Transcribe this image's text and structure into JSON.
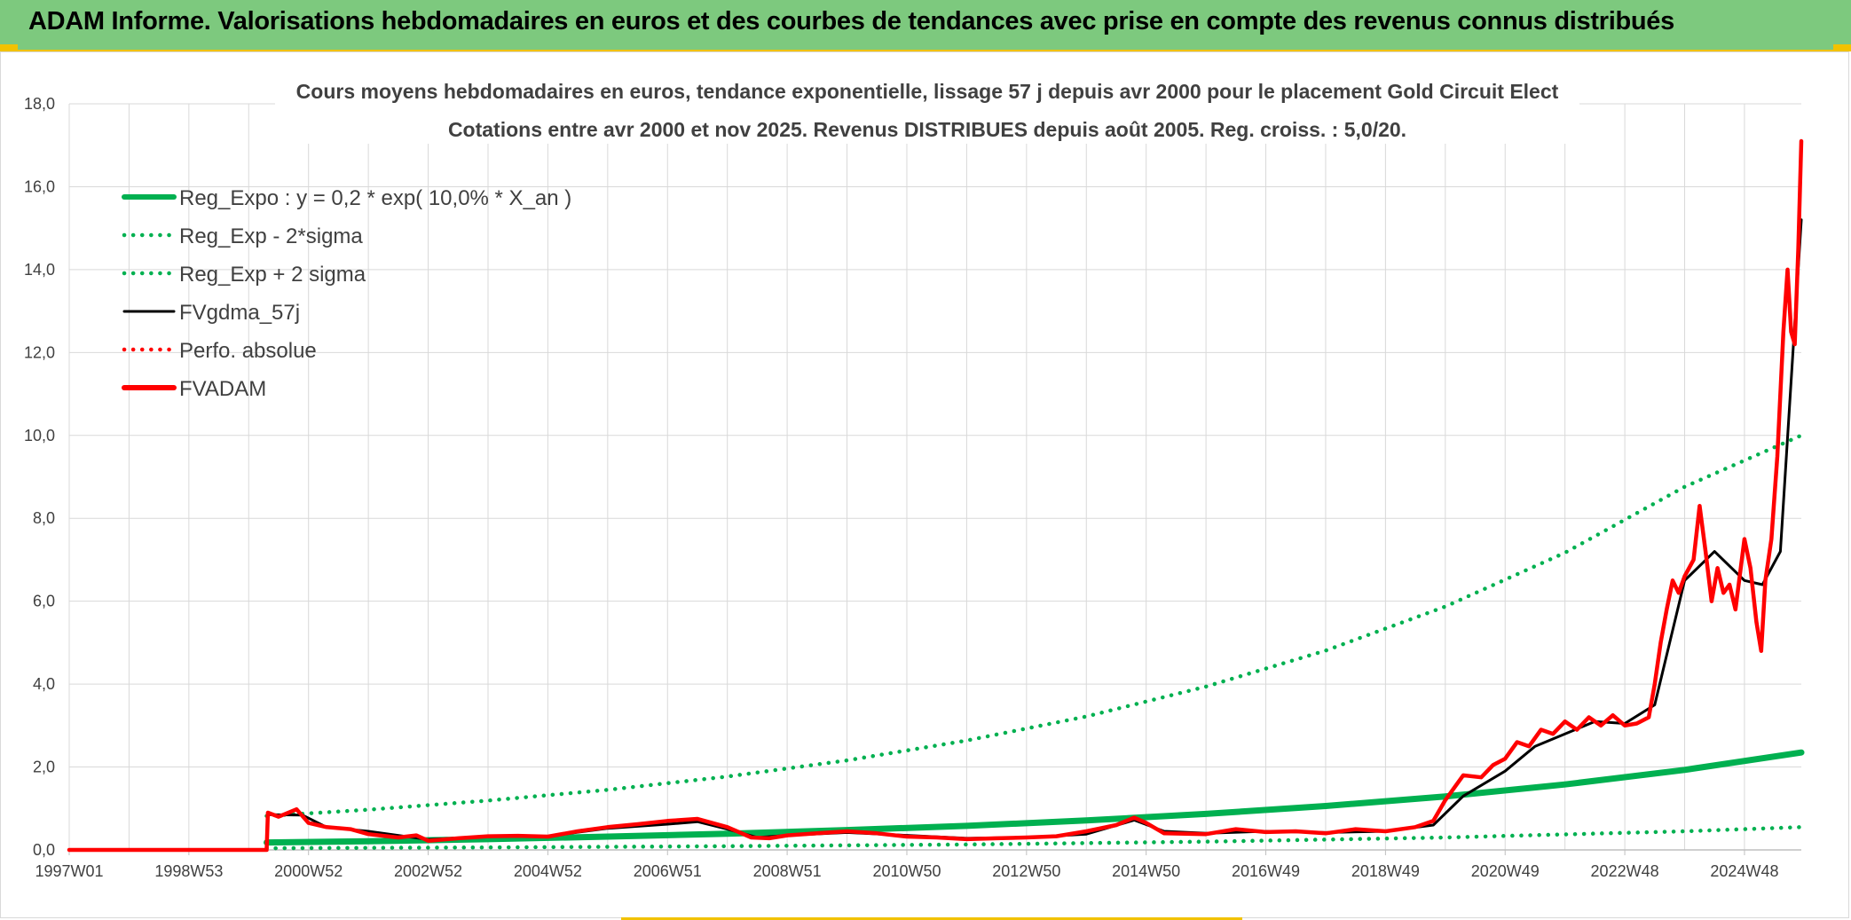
{
  "banner": {
    "title": "ADAM Informe. Valorisations hebdomadaires en euros et des courbes de tendances avec prise en compte des revenus connus distribués"
  },
  "chart_data": {
    "type": "line",
    "title": "Cours moyens hebdomadaires en euros, tendance exponentielle, lissage 57 j depuis avr 2000 pour le placement Gold Circuit Elect",
    "subtitle": "Cotations entre avr 2000 et nov 2025. Revenus DISTRIBUES depuis août 2005. Reg. croiss. : 5,0/20.",
    "xlabel": "",
    "ylabel": "",
    "ylim": [
      0,
      18
    ],
    "yticks": [
      "0,0",
      "2,0",
      "4,0",
      "6,0",
      "8,0",
      "10,0",
      "12,0",
      "14,0",
      "16,0",
      "18,0"
    ],
    "xlim": [
      1997.0,
      2025.95
    ],
    "xtick_labels": [
      {
        "x": 1997.0,
        "label": "1997W01"
      },
      {
        "x": 1999.0,
        "label": "1998W53"
      },
      {
        "x": 2001.0,
        "label": "2000W52"
      },
      {
        "x": 2003.0,
        "label": "2002W52"
      },
      {
        "x": 2005.0,
        "label": "2004W52"
      },
      {
        "x": 2007.0,
        "label": "2006W51"
      },
      {
        "x": 2009.0,
        "label": "2008W51"
      },
      {
        "x": 2011.0,
        "label": "2010W50"
      },
      {
        "x": 2013.0,
        "label": "2012W50"
      },
      {
        "x": 2015.0,
        "label": "2014W50"
      },
      {
        "x": 2017.0,
        "label": "2016W49"
      },
      {
        "x": 2019.0,
        "label": "2018W49"
      },
      {
        "x": 2021.0,
        "label": "2020W49"
      },
      {
        "x": 2023.0,
        "label": "2022W48"
      },
      {
        "x": 2025.0,
        "label": "2024W48"
      }
    ],
    "legend_position": "top-left",
    "series": [
      {
        "name": "Reg_Expo : y = 0,2 * exp( 10,0% *  X_an )",
        "color": "#00b050",
        "style": "solid-thick",
        "points": [
          [
            2000.3,
            0.18
          ],
          [
            2002,
            0.21
          ],
          [
            2004,
            0.26
          ],
          [
            2006,
            0.32
          ],
          [
            2008,
            0.39
          ],
          [
            2010,
            0.48
          ],
          [
            2012,
            0.58
          ],
          [
            2014,
            0.71
          ],
          [
            2016,
            0.87
          ],
          [
            2018,
            1.06
          ],
          [
            2020,
            1.29
          ],
          [
            2022,
            1.58
          ],
          [
            2024,
            1.93
          ],
          [
            2025.95,
            2.35
          ]
        ]
      },
      {
        "name": "Reg_Exp - 2*sigma",
        "color": "#00b050",
        "style": "dotted",
        "points": [
          [
            2000.3,
            0.04
          ],
          [
            2004,
            0.06
          ],
          [
            2008,
            0.09
          ],
          [
            2012,
            0.13
          ],
          [
            2016,
            0.2
          ],
          [
            2020,
            0.3
          ],
          [
            2024,
            0.45
          ],
          [
            2025.95,
            0.55
          ]
        ]
      },
      {
        "name": "Reg_Exp + 2 sigma",
        "color": "#00b050",
        "style": "dotted",
        "points": [
          [
            2000.3,
            0.82
          ],
          [
            2002,
            0.97
          ],
          [
            2004,
            1.19
          ],
          [
            2006,
            1.45
          ],
          [
            2008,
            1.77
          ],
          [
            2010,
            2.16
          ],
          [
            2012,
            2.64
          ],
          [
            2014,
            3.22
          ],
          [
            2016,
            3.94
          ],
          [
            2018,
            4.81
          ],
          [
            2020,
            5.87
          ],
          [
            2022,
            7.17
          ],
          [
            2024,
            8.76
          ],
          [
            2025.95,
            10.0
          ]
        ]
      },
      {
        "name": "FVgdma_57j",
        "color": "#000000",
        "style": "solid",
        "points": [
          [
            1997.0,
            0.0
          ],
          [
            2000.3,
            0.0
          ],
          [
            2000.32,
            0.85
          ],
          [
            2000.9,
            0.84
          ],
          [
            2001.3,
            0.55
          ],
          [
            2002.0,
            0.45
          ],
          [
            2003.0,
            0.25
          ],
          [
            2004.0,
            0.32
          ],
          [
            2005.0,
            0.33
          ],
          [
            2006.0,
            0.52
          ],
          [
            2007.0,
            0.62
          ],
          [
            2007.5,
            0.68
          ],
          [
            2008.0,
            0.5
          ],
          [
            2008.5,
            0.3
          ],
          [
            2009.0,
            0.35
          ],
          [
            2010.0,
            0.42
          ],
          [
            2011.0,
            0.35
          ],
          [
            2012.0,
            0.28
          ],
          [
            2013.0,
            0.3
          ],
          [
            2014.0,
            0.38
          ],
          [
            2014.8,
            0.72
          ],
          [
            2015.3,
            0.45
          ],
          [
            2016.0,
            0.4
          ],
          [
            2017.0,
            0.45
          ],
          [
            2018.0,
            0.42
          ],
          [
            2019.0,
            0.45
          ],
          [
            2019.8,
            0.6
          ],
          [
            2020.3,
            1.3
          ],
          [
            2021.0,
            1.9
          ],
          [
            2021.5,
            2.5
          ],
          [
            2022.0,
            2.8
          ],
          [
            2022.5,
            3.1
          ],
          [
            2023.0,
            3.05
          ],
          [
            2023.5,
            3.5
          ],
          [
            2024.0,
            6.5
          ],
          [
            2024.5,
            7.2
          ],
          [
            2025.0,
            6.5
          ],
          [
            2025.3,
            6.4
          ],
          [
            2025.6,
            7.2
          ],
          [
            2025.95,
            15.2
          ]
        ]
      },
      {
        "name": "Perfo. absolue",
        "color": "#ff0000",
        "style": "dotted",
        "points": []
      },
      {
        "name": "FVADAM",
        "color": "#ff0000",
        "style": "solid-thick",
        "points": [
          [
            1997.0,
            0.0
          ],
          [
            2000.3,
            0.0
          ],
          [
            2000.32,
            0.9
          ],
          [
            2000.5,
            0.8
          ],
          [
            2000.8,
            0.98
          ],
          [
            2001.0,
            0.65
          ],
          [
            2001.3,
            0.55
          ],
          [
            2001.7,
            0.5
          ],
          [
            2002.0,
            0.38
          ],
          [
            2002.5,
            0.3
          ],
          [
            2002.8,
            0.35
          ],
          [
            2003.0,
            0.22
          ],
          [
            2003.5,
            0.28
          ],
          [
            2004.0,
            0.33
          ],
          [
            2004.5,
            0.34
          ],
          [
            2005.0,
            0.32
          ],
          [
            2005.5,
            0.45
          ],
          [
            2006.0,
            0.55
          ],
          [
            2006.5,
            0.62
          ],
          [
            2007.0,
            0.7
          ],
          [
            2007.5,
            0.75
          ],
          [
            2008.0,
            0.55
          ],
          [
            2008.4,
            0.3
          ],
          [
            2008.7,
            0.28
          ],
          [
            2009.0,
            0.35
          ],
          [
            2009.5,
            0.4
          ],
          [
            2010.0,
            0.45
          ],
          [
            2010.5,
            0.4
          ],
          [
            2011.0,
            0.32
          ],
          [
            2011.5,
            0.3
          ],
          [
            2012.0,
            0.26
          ],
          [
            2012.5,
            0.28
          ],
          [
            2013.0,
            0.3
          ],
          [
            2013.5,
            0.33
          ],
          [
            2014.0,
            0.45
          ],
          [
            2014.5,
            0.6
          ],
          [
            2014.8,
            0.78
          ],
          [
            2015.0,
            0.65
          ],
          [
            2015.3,
            0.4
          ],
          [
            2016.0,
            0.38
          ],
          [
            2016.5,
            0.5
          ],
          [
            2017.0,
            0.43
          ],
          [
            2017.5,
            0.45
          ],
          [
            2018.0,
            0.4
          ],
          [
            2018.5,
            0.5
          ],
          [
            2019.0,
            0.45
          ],
          [
            2019.5,
            0.55
          ],
          [
            2019.8,
            0.7
          ],
          [
            2020.0,
            1.2
          ],
          [
            2020.3,
            1.8
          ],
          [
            2020.6,
            1.75
          ],
          [
            2020.8,
            2.05
          ],
          [
            2021.0,
            2.2
          ],
          [
            2021.2,
            2.6
          ],
          [
            2021.4,
            2.5
          ],
          [
            2021.6,
            2.9
          ],
          [
            2021.8,
            2.8
          ],
          [
            2022.0,
            3.1
          ],
          [
            2022.2,
            2.9
          ],
          [
            2022.4,
            3.2
          ],
          [
            2022.6,
            3.0
          ],
          [
            2022.8,
            3.25
          ],
          [
            2023.0,
            3.0
          ],
          [
            2023.2,
            3.05
          ],
          [
            2023.4,
            3.2
          ],
          [
            2023.5,
            4.0
          ],
          [
            2023.6,
            5.0
          ],
          [
            2023.7,
            5.8
          ],
          [
            2023.8,
            6.5
          ],
          [
            2023.9,
            6.2
          ],
          [
            2024.0,
            6.6
          ],
          [
            2024.15,
            7.0
          ],
          [
            2024.25,
            8.3
          ],
          [
            2024.35,
            7.2
          ],
          [
            2024.45,
            6.0
          ],
          [
            2024.55,
            6.8
          ],
          [
            2024.65,
            6.2
          ],
          [
            2024.75,
            6.4
          ],
          [
            2024.85,
            5.8
          ],
          [
            2025.0,
            7.5
          ],
          [
            2025.1,
            6.8
          ],
          [
            2025.2,
            5.5
          ],
          [
            2025.28,
            4.8
          ],
          [
            2025.35,
            6.5
          ],
          [
            2025.45,
            7.5
          ],
          [
            2025.55,
            9.5
          ],
          [
            2025.65,
            12.5
          ],
          [
            2025.72,
            14.0
          ],
          [
            2025.78,
            12.5
          ],
          [
            2025.84,
            12.2
          ],
          [
            2025.9,
            14.5
          ],
          [
            2025.95,
            17.1
          ]
        ]
      }
    ]
  }
}
